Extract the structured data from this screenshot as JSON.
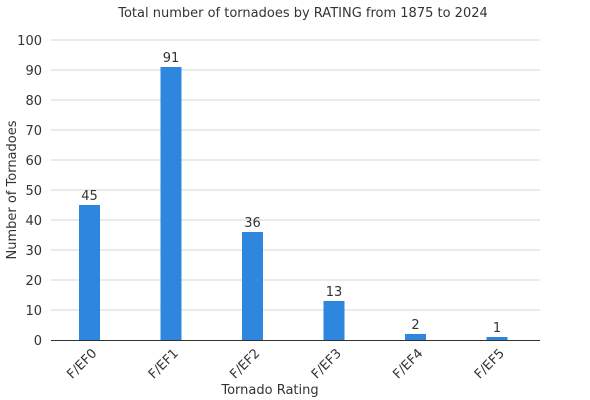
{
  "chart_data": {
    "type": "bar",
    "title": "Total number of tornadoes by RATING from 1875 to 2024",
    "xlabel": "Tornado Rating",
    "ylabel": "Number of Tornadoes",
    "categories": [
      "F/EF0",
      "F/EF1",
      "F/EF2",
      "F/EF3",
      "F/EF4",
      "F/EF5"
    ],
    "values": [
      45,
      91,
      36,
      13,
      2,
      1
    ],
    "ylim": [
      0,
      100
    ],
    "yticks": [
      0,
      10,
      20,
      30,
      40,
      50,
      60,
      70,
      80,
      90,
      100
    ],
    "grid": true,
    "legend": "none",
    "colors": {
      "bar": "#2e86de"
    }
  }
}
